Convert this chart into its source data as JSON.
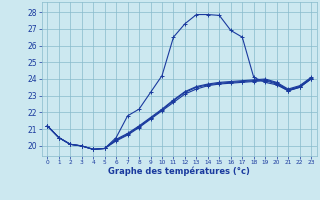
{
  "xlabel": "Graphe des températures (°c)",
  "bg_color": "#cce8f0",
  "grid_color": "#88bbcc",
  "line_color": "#1a3a9e",
  "xlim": [
    -0.5,
    23.5
  ],
  "ylim": [
    19.4,
    28.6
  ],
  "yticks": [
    20,
    21,
    22,
    23,
    24,
    25,
    26,
    27,
    28
  ],
  "xticks": [
    0,
    1,
    2,
    3,
    4,
    5,
    6,
    7,
    8,
    9,
    10,
    11,
    12,
    13,
    14,
    15,
    16,
    17,
    18,
    19,
    20,
    21,
    22,
    23
  ],
  "curve1_x": [
    0,
    1,
    2,
    3,
    4,
    5,
    6,
    7,
    8,
    9,
    10,
    11,
    12,
    13,
    14,
    15,
    16,
    17,
    18,
    19,
    20,
    21,
    22,
    23
  ],
  "curve1_y": [
    21.2,
    20.5,
    20.1,
    20.0,
    19.8,
    19.85,
    20.5,
    21.8,
    22.2,
    23.2,
    24.2,
    26.5,
    27.3,
    27.85,
    27.85,
    27.8,
    26.9,
    26.5,
    24.1,
    23.8,
    23.65,
    23.3,
    23.5,
    24.0
  ],
  "curve2_x": [
    0,
    1,
    2,
    3,
    4,
    5,
    6,
    7,
    8,
    9,
    10,
    11,
    12,
    13,
    14,
    15,
    16,
    17,
    18,
    19,
    20,
    21,
    22,
    23
  ],
  "curve2_y": [
    21.2,
    20.5,
    20.1,
    20.0,
    19.8,
    19.85,
    20.3,
    20.65,
    21.1,
    21.6,
    22.1,
    22.6,
    23.1,
    23.4,
    23.6,
    23.7,
    23.75,
    23.8,
    23.85,
    23.9,
    23.7,
    23.3,
    23.5,
    24.0
  ],
  "curve3_x": [
    0,
    1,
    2,
    3,
    4,
    5,
    6,
    7,
    8,
    9,
    10,
    11,
    12,
    13,
    14,
    15,
    16,
    17,
    18,
    19,
    20,
    21,
    22,
    23
  ],
  "curve3_y": [
    21.2,
    20.5,
    20.1,
    20.0,
    19.8,
    19.85,
    20.35,
    20.7,
    21.15,
    21.65,
    22.15,
    22.7,
    23.2,
    23.5,
    23.65,
    23.75,
    23.8,
    23.85,
    23.9,
    23.95,
    23.75,
    23.35,
    23.55,
    24.05
  ],
  "curve4_x": [
    0,
    1,
    2,
    3,
    4,
    5,
    6,
    7,
    8,
    9,
    10,
    11,
    12,
    13,
    14,
    15,
    16,
    17,
    18,
    19,
    20,
    21,
    22,
    23
  ],
  "curve4_y": [
    21.2,
    20.5,
    20.1,
    20.0,
    19.8,
    19.85,
    20.4,
    20.75,
    21.2,
    21.7,
    22.2,
    22.75,
    23.25,
    23.55,
    23.7,
    23.8,
    23.85,
    23.9,
    23.95,
    24.0,
    23.8,
    23.4,
    23.6,
    24.1
  ]
}
